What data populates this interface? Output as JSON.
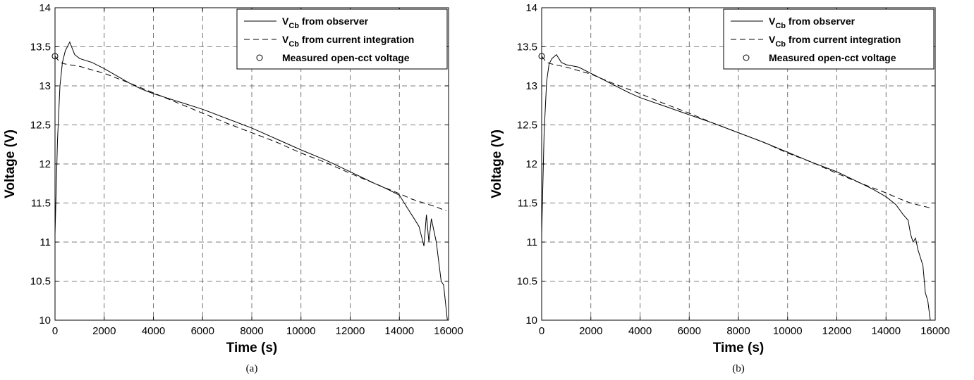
{
  "chart_data": [
    {
      "type": "line",
      "caption": "(a)",
      "xlabel": "Time (s)",
      "ylabel": "Voltage (V)",
      "xlim": [
        0,
        16000
      ],
      "ylim": [
        10,
        14
      ],
      "xticks": [
        0,
        2000,
        4000,
        6000,
        8000,
        10000,
        12000,
        14000,
        16000
      ],
      "yticks": [
        10,
        10.5,
        11,
        11.5,
        12,
        12.5,
        13,
        13.5,
        14
      ],
      "grid": true,
      "legend_position": "top-right",
      "series": [
        {
          "name": "V_Cb from observer",
          "legend": {
            "main": "V",
            "sub": "Cb",
            "rest": " from observer"
          },
          "style": "solid",
          "x": [
            0,
            100,
            200,
            300,
            420,
            600,
            800,
            1000,
            1500,
            2000,
            2500,
            3000,
            3500,
            4000,
            5000,
            6000,
            7000,
            8000,
            9000,
            10000,
            11000,
            12000,
            13000,
            13500,
            14000,
            14300,
            14600,
            14800,
            15000,
            15100,
            15200,
            15300,
            15500,
            15700,
            15800,
            15950
          ],
          "y": [
            11.1,
            12.3,
            13.0,
            13.3,
            13.45,
            13.56,
            13.4,
            13.35,
            13.3,
            13.22,
            13.13,
            13.04,
            12.96,
            12.9,
            12.8,
            12.7,
            12.58,
            12.46,
            12.32,
            12.18,
            12.05,
            11.9,
            11.75,
            11.68,
            11.6,
            11.45,
            11.3,
            11.2,
            10.95,
            11.35,
            11.0,
            11.3,
            11.0,
            10.5,
            10.45,
            10.0
          ]
        },
        {
          "name": "V_Cb from current integration",
          "legend": {
            "main": "V",
            "sub": "Cb",
            "rest": " from current integration"
          },
          "style": "dashed",
          "x": [
            0,
            200,
            400,
            1000,
            2000,
            3000,
            4000,
            5000,
            6000,
            7000,
            8000,
            9000,
            10000,
            11000,
            12000,
            13000,
            14000,
            14500,
            15000,
            15500,
            15900
          ],
          "y": [
            13.38,
            13.3,
            13.28,
            13.25,
            13.16,
            13.04,
            12.91,
            12.78,
            12.65,
            12.52,
            12.4,
            12.28,
            12.14,
            12.02,
            11.88,
            11.75,
            11.62,
            11.55,
            11.5,
            11.45,
            11.4
          ]
        },
        {
          "name": "Measured open-cct voltage",
          "legend": {
            "main": "Measured open-cct voltage",
            "sub": "",
            "rest": ""
          },
          "style": "marker",
          "x": [
            0
          ],
          "y": [
            13.38
          ]
        }
      ]
    },
    {
      "type": "line",
      "caption": "(b)",
      "xlabel": "Time (s)",
      "ylabel": "Voltage (V)",
      "xlim": [
        0,
        16000
      ],
      "ylim": [
        10,
        14
      ],
      "xticks": [
        0,
        2000,
        4000,
        6000,
        8000,
        10000,
        12000,
        14000,
        16000
      ],
      "yticks": [
        10,
        10.5,
        11,
        11.5,
        12,
        12.5,
        13,
        13.5,
        14
      ],
      "grid": true,
      "legend_position": "top-right",
      "series": [
        {
          "name": "V_Cb from observer",
          "legend": {
            "main": "V",
            "sub": "Cb",
            "rest": " from observer"
          },
          "style": "solid",
          "x": [
            0,
            100,
            200,
            300,
            420,
            600,
            800,
            1000,
            1500,
            2000,
            2500,
            3000,
            3500,
            4000,
            5000,
            6000,
            7000,
            8000,
            9000,
            10000,
            11000,
            12000,
            13000,
            13500,
            14000,
            14400,
            14700,
            14900,
            15000,
            15100,
            15200,
            15300,
            15500,
            15600,
            15700,
            15800
          ],
          "y": [
            11.1,
            12.4,
            13.05,
            13.28,
            13.35,
            13.4,
            13.3,
            13.27,
            13.24,
            13.16,
            13.08,
            13.0,
            12.92,
            12.85,
            12.74,
            12.63,
            12.52,
            12.4,
            12.28,
            12.15,
            12.02,
            11.9,
            11.75,
            11.67,
            11.58,
            11.48,
            11.35,
            11.28,
            11.1,
            11.0,
            11.05,
            10.9,
            10.7,
            10.35,
            10.25,
            10.0
          ]
        },
        {
          "name": "V_Cb from current integration",
          "legend": {
            "main": "V",
            "sub": "Cb",
            "rest": " from current integration"
          },
          "style": "dashed",
          "x": [
            0,
            200,
            400,
            1000,
            2000,
            3000,
            4000,
            5000,
            6000,
            7000,
            8000,
            9000,
            10000,
            11000,
            12000,
            13000,
            14000,
            14500,
            15000,
            15500,
            15900
          ],
          "y": [
            13.38,
            13.3,
            13.28,
            13.24,
            13.15,
            13.02,
            12.9,
            12.77,
            12.65,
            12.52,
            12.4,
            12.28,
            12.14,
            12.02,
            11.88,
            11.75,
            11.63,
            11.56,
            11.5,
            11.46,
            11.43
          ]
        },
        {
          "name": "Measured open-cct voltage",
          "legend": {
            "main": "Measured open-cct voltage",
            "sub": "",
            "rest": ""
          },
          "style": "marker",
          "x": [
            0
          ],
          "y": [
            13.38
          ]
        }
      ]
    }
  ]
}
